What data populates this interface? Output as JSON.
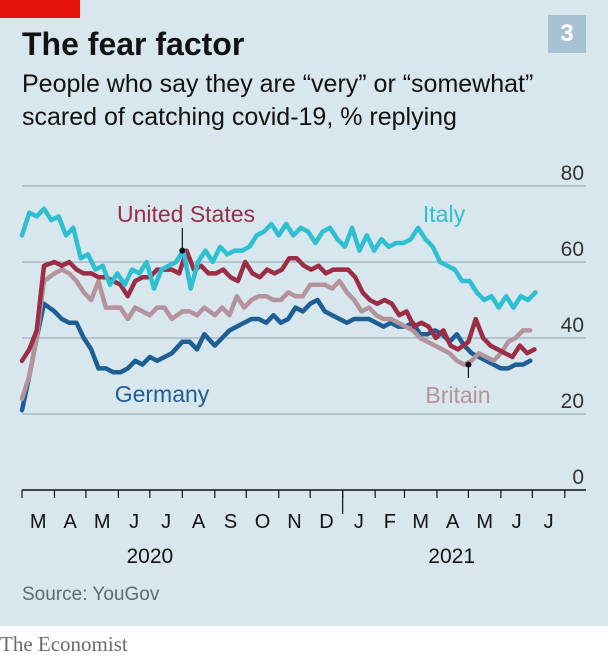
{
  "figure": {
    "number": "3",
    "title": "The fear factor",
    "subtitle": "People who say they are “very” or “somewhat” scared of catching covid-19, % replying",
    "source": "Source: YouGov",
    "brand": "The Economist"
  },
  "colors": {
    "background": "#d8e6ee",
    "tag": "#e3120b",
    "badge": "#a7c3d3",
    "Italy": "#2ec0d1",
    "United States": "#9b2d44",
    "Britain": "#b5939c",
    "Germany": "#1d5f94",
    "grid": "#8fa4b0"
  },
  "chart_data": {
    "type": "line",
    "ylim": [
      0,
      80
    ],
    "yticks": [
      0,
      20,
      40,
      60,
      80
    ],
    "x_unit": "week",
    "xlim": [
      "2020-03-01",
      "2021-07-15"
    ],
    "month_labels": [
      "M",
      "A",
      "M",
      "J",
      "J",
      "A",
      "S",
      "O",
      "N",
      "D",
      "J",
      "F",
      "M",
      "A",
      "M",
      "J",
      "J"
    ],
    "year_labels": [
      {
        "label": "2020",
        "at": "2020-07-01"
      },
      {
        "label": "2021",
        "at": "2021-04-15"
      }
    ],
    "grid": true,
    "series": [
      {
        "name": "Italy",
        "label_anchor": "2021-01-01",
        "points": [
          [
            "2020-03-01",
            67
          ],
          [
            "2020-03-08",
            73
          ],
          [
            "2020-03-15",
            72
          ],
          [
            "2020-03-22",
            74
          ],
          [
            "2020-03-29",
            71
          ],
          [
            "2020-04-05",
            72
          ],
          [
            "2020-04-12",
            67
          ],
          [
            "2020-04-19",
            69
          ],
          [
            "2020-04-26",
            61
          ],
          [
            "2020-05-03",
            62
          ],
          [
            "2020-05-10",
            58
          ],
          [
            "2020-05-17",
            59
          ],
          [
            "2020-05-24",
            54
          ],
          [
            "2020-05-31",
            57
          ],
          [
            "2020-06-07",
            54
          ],
          [
            "2020-06-14",
            58
          ],
          [
            "2020-06-21",
            57
          ],
          [
            "2020-06-28",
            60
          ],
          [
            "2020-07-05",
            53
          ],
          [
            "2020-07-12",
            58
          ],
          [
            "2020-07-19",
            59
          ],
          [
            "2020-07-26",
            60
          ],
          [
            "2020-08-02",
            63
          ],
          [
            "2020-08-09",
            53
          ],
          [
            "2020-08-16",
            60
          ],
          [
            "2020-08-23",
            63
          ],
          [
            "2020-08-30",
            60
          ],
          [
            "2020-09-06",
            64
          ],
          [
            "2020-09-13",
            62
          ],
          [
            "2020-09-20",
            63
          ],
          [
            "2020-09-27",
            63
          ],
          [
            "2020-10-04",
            64
          ],
          [
            "2020-10-11",
            67
          ],
          [
            "2020-10-18",
            68
          ],
          [
            "2020-10-25",
            70
          ],
          [
            "2020-11-01",
            67
          ],
          [
            "2020-11-08",
            70
          ],
          [
            "2020-11-15",
            67
          ],
          [
            "2020-11-22",
            69
          ],
          [
            "2020-11-29",
            68
          ],
          [
            "2020-12-06",
            65
          ],
          [
            "2020-12-13",
            68
          ],
          [
            "2020-12-20",
            69
          ],
          [
            "2020-12-27",
            66
          ],
          [
            "2021-01-03",
            64
          ],
          [
            "2021-01-10",
            69
          ],
          [
            "2021-01-17",
            63
          ],
          [
            "2021-01-24",
            67
          ],
          [
            "2021-01-31",
            63
          ],
          [
            "2021-02-07",
            66
          ],
          [
            "2021-02-14",
            64
          ],
          [
            "2021-02-21",
            65
          ],
          [
            "2021-02-28",
            65
          ],
          [
            "2021-03-07",
            66
          ],
          [
            "2021-03-14",
            69
          ],
          [
            "2021-03-21",
            66
          ],
          [
            "2021-03-28",
            64
          ],
          [
            "2021-04-04",
            60
          ],
          [
            "2021-04-11",
            59
          ],
          [
            "2021-04-18",
            58
          ],
          [
            "2021-04-25",
            55
          ],
          [
            "2021-05-02",
            55
          ],
          [
            "2021-05-09",
            52
          ],
          [
            "2021-05-16",
            50
          ],
          [
            "2021-05-23",
            51
          ],
          [
            "2021-05-30",
            48
          ],
          [
            "2021-06-06",
            51
          ],
          [
            "2021-06-13",
            48
          ],
          [
            "2021-06-20",
            51
          ],
          [
            "2021-06-27",
            50
          ],
          [
            "2021-07-04",
            52
          ]
        ]
      },
      {
        "name": "United States",
        "label_anchor": "2020-08-01",
        "points": [
          [
            "2020-03-01",
            34
          ],
          [
            "2020-03-08",
            37
          ],
          [
            "2020-03-15",
            42
          ],
          [
            "2020-03-22",
            59
          ],
          [
            "2020-04-01",
            60
          ],
          [
            "2020-04-08",
            59
          ],
          [
            "2020-04-15",
            60
          ],
          [
            "2020-04-22",
            58
          ],
          [
            "2020-04-29",
            57
          ],
          [
            "2020-05-06",
            57
          ],
          [
            "2020-05-13",
            56
          ],
          [
            "2020-05-20",
            56
          ],
          [
            "2020-05-27",
            55
          ],
          [
            "2020-06-03",
            54
          ],
          [
            "2020-06-10",
            51
          ],
          [
            "2020-06-17",
            55
          ],
          [
            "2020-06-24",
            56
          ],
          [
            "2020-07-01",
            56
          ],
          [
            "2020-07-08",
            58
          ],
          [
            "2020-07-15",
            58
          ],
          [
            "2020-07-22",
            58
          ],
          [
            "2020-07-29",
            57
          ],
          [
            "2020-08-05",
            63
          ],
          [
            "2020-08-12",
            58
          ],
          [
            "2020-08-19",
            59
          ],
          [
            "2020-08-26",
            57
          ],
          [
            "2020-09-02",
            57
          ],
          [
            "2020-09-09",
            58
          ],
          [
            "2020-09-16",
            56
          ],
          [
            "2020-09-23",
            55
          ],
          [
            "2020-09-30",
            60
          ],
          [
            "2020-10-07",
            57
          ],
          [
            "2020-10-14",
            56
          ],
          [
            "2020-10-21",
            58
          ],
          [
            "2020-10-28",
            57
          ],
          [
            "2020-11-04",
            58
          ],
          [
            "2020-11-11",
            61
          ],
          [
            "2020-11-18",
            61
          ],
          [
            "2020-11-25",
            59
          ],
          [
            "2020-12-02",
            58
          ],
          [
            "2020-12-09",
            59
          ],
          [
            "2020-12-16",
            57
          ],
          [
            "2020-12-23",
            58
          ],
          [
            "2020-12-30",
            58
          ],
          [
            "2021-01-06",
            58
          ],
          [
            "2021-01-13",
            56
          ],
          [
            "2021-01-20",
            52
          ],
          [
            "2021-01-27",
            50
          ],
          [
            "2021-02-03",
            49
          ],
          [
            "2021-02-10",
            50
          ],
          [
            "2021-02-17",
            49
          ],
          [
            "2021-02-24",
            46
          ],
          [
            "2021-03-03",
            47
          ],
          [
            "2021-03-10",
            43
          ],
          [
            "2021-03-17",
            44
          ],
          [
            "2021-03-24",
            43
          ],
          [
            "2021-03-31",
            40
          ],
          [
            "2021-04-07",
            42
          ],
          [
            "2021-04-14",
            38
          ],
          [
            "2021-04-21",
            37
          ],
          [
            "2021-05-01",
            39
          ],
          [
            "2021-05-08",
            45
          ],
          [
            "2021-05-15",
            40
          ],
          [
            "2021-05-22",
            38
          ],
          [
            "2021-05-29",
            37
          ],
          [
            "2021-06-05",
            36
          ],
          [
            "2021-06-12",
            35
          ],
          [
            "2021-06-19",
            38
          ],
          [
            "2021-06-26",
            36
          ],
          [
            "2021-07-03",
            37
          ]
        ]
      },
      {
        "name": "Britain",
        "label_anchor": "2021-05-01",
        "points": [
          [
            "2020-03-01",
            24
          ],
          [
            "2020-03-08",
            30
          ],
          [
            "2020-03-15",
            40
          ],
          [
            "2020-03-22",
            55
          ],
          [
            "2020-04-01",
            57
          ],
          [
            "2020-04-08",
            58
          ],
          [
            "2020-04-15",
            57
          ],
          [
            "2020-04-22",
            55
          ],
          [
            "2020-04-29",
            52
          ],
          [
            "2020-05-06",
            50
          ],
          [
            "2020-05-13",
            55
          ],
          [
            "2020-05-20",
            48
          ],
          [
            "2020-05-27",
            48
          ],
          [
            "2020-06-03",
            48
          ],
          [
            "2020-06-10",
            45
          ],
          [
            "2020-06-17",
            48
          ],
          [
            "2020-06-24",
            47
          ],
          [
            "2020-07-01",
            46
          ],
          [
            "2020-07-08",
            48
          ],
          [
            "2020-07-15",
            48
          ],
          [
            "2020-07-22",
            45
          ],
          [
            "2020-08-01",
            47
          ],
          [
            "2020-08-08",
            47
          ],
          [
            "2020-08-15",
            46
          ],
          [
            "2020-08-22",
            48
          ],
          [
            "2020-09-01",
            46
          ],
          [
            "2020-09-08",
            48
          ],
          [
            "2020-09-15",
            46
          ],
          [
            "2020-09-22",
            51
          ],
          [
            "2020-09-29",
            48
          ],
          [
            "2020-10-06",
            50
          ],
          [
            "2020-10-13",
            51
          ],
          [
            "2020-10-20",
            51
          ],
          [
            "2020-10-27",
            50
          ],
          [
            "2020-11-03",
            50
          ],
          [
            "2020-11-10",
            52
          ],
          [
            "2020-11-17",
            51
          ],
          [
            "2020-11-24",
            51
          ],
          [
            "2020-12-01",
            54
          ],
          [
            "2020-12-08",
            54
          ],
          [
            "2020-12-15",
            54
          ],
          [
            "2020-12-22",
            53
          ],
          [
            "2020-12-29",
            55
          ],
          [
            "2021-01-05",
            52
          ],
          [
            "2021-01-12",
            50
          ],
          [
            "2021-01-19",
            47
          ],
          [
            "2021-01-26",
            48
          ],
          [
            "2021-02-02",
            46
          ],
          [
            "2021-02-09",
            45
          ],
          [
            "2021-02-16",
            45
          ],
          [
            "2021-02-23",
            44
          ],
          [
            "2021-03-02",
            43
          ],
          [
            "2021-03-09",
            42
          ],
          [
            "2021-03-16",
            40
          ],
          [
            "2021-03-23",
            39
          ],
          [
            "2021-03-30",
            38
          ],
          [
            "2021-04-06",
            37
          ],
          [
            "2021-04-13",
            36
          ],
          [
            "2021-04-20",
            34
          ],
          [
            "2021-04-27",
            33
          ],
          [
            "2021-05-04",
            34
          ],
          [
            "2021-05-11",
            36
          ],
          [
            "2021-05-18",
            35
          ],
          [
            "2021-05-25",
            34
          ],
          [
            "2021-06-01",
            36
          ],
          [
            "2021-06-08",
            39
          ],
          [
            "2021-06-15",
            40
          ],
          [
            "2021-06-22",
            42
          ],
          [
            "2021-06-29",
            42
          ]
        ]
      },
      {
        "name": "Germany",
        "label_anchor": "2020-06-10",
        "points": [
          [
            "2020-03-01",
            21
          ],
          [
            "2020-03-08",
            30
          ],
          [
            "2020-03-15",
            40
          ],
          [
            "2020-03-22",
            49
          ],
          [
            "2020-04-01",
            47
          ],
          [
            "2020-04-08",
            45
          ],
          [
            "2020-04-15",
            44
          ],
          [
            "2020-04-22",
            44
          ],
          [
            "2020-04-29",
            40
          ],
          [
            "2020-05-06",
            37
          ],
          [
            "2020-05-13",
            32
          ],
          [
            "2020-05-20",
            32
          ],
          [
            "2020-05-27",
            31
          ],
          [
            "2020-06-03",
            31
          ],
          [
            "2020-06-10",
            32
          ],
          [
            "2020-06-17",
            34
          ],
          [
            "2020-06-24",
            33
          ],
          [
            "2020-07-01",
            35
          ],
          [
            "2020-07-08",
            34
          ],
          [
            "2020-07-15",
            35
          ],
          [
            "2020-07-22",
            36
          ],
          [
            "2020-08-01",
            39
          ],
          [
            "2020-08-08",
            39
          ],
          [
            "2020-08-15",
            37
          ],
          [
            "2020-08-22",
            41
          ],
          [
            "2020-09-01",
            38
          ],
          [
            "2020-09-08",
            40
          ],
          [
            "2020-09-15",
            42
          ],
          [
            "2020-09-22",
            43
          ],
          [
            "2020-09-29",
            44
          ],
          [
            "2020-10-06",
            45
          ],
          [
            "2020-10-13",
            45
          ],
          [
            "2020-10-20",
            44
          ],
          [
            "2020-10-27",
            46
          ],
          [
            "2020-11-03",
            44
          ],
          [
            "2020-11-10",
            45
          ],
          [
            "2020-11-17",
            48
          ],
          [
            "2020-11-24",
            47
          ],
          [
            "2020-12-01",
            49
          ],
          [
            "2020-12-08",
            50
          ],
          [
            "2020-12-15",
            47
          ],
          [
            "2020-12-22",
            46
          ],
          [
            "2020-12-29",
            45
          ],
          [
            "2021-01-05",
            44
          ],
          [
            "2021-01-12",
            45
          ],
          [
            "2021-01-19",
            45
          ],
          [
            "2021-01-26",
            45
          ],
          [
            "2021-02-02",
            44
          ],
          [
            "2021-02-09",
            43
          ],
          [
            "2021-02-16",
            44
          ],
          [
            "2021-02-23",
            43
          ],
          [
            "2021-03-02",
            43
          ],
          [
            "2021-03-09",
            44
          ],
          [
            "2021-03-16",
            41
          ],
          [
            "2021-03-23",
            41
          ],
          [
            "2021-03-30",
            42
          ],
          [
            "2021-04-06",
            41
          ],
          [
            "2021-04-13",
            39
          ],
          [
            "2021-04-20",
            41
          ],
          [
            "2021-04-27",
            38
          ],
          [
            "2021-05-04",
            36
          ],
          [
            "2021-05-11",
            35
          ],
          [
            "2021-05-18",
            34
          ],
          [
            "2021-05-25",
            33
          ],
          [
            "2021-06-01",
            32
          ],
          [
            "2021-06-08",
            32
          ],
          [
            "2021-06-15",
            33
          ],
          [
            "2021-06-22",
            33
          ],
          [
            "2021-06-29",
            34
          ]
        ]
      }
    ]
  }
}
